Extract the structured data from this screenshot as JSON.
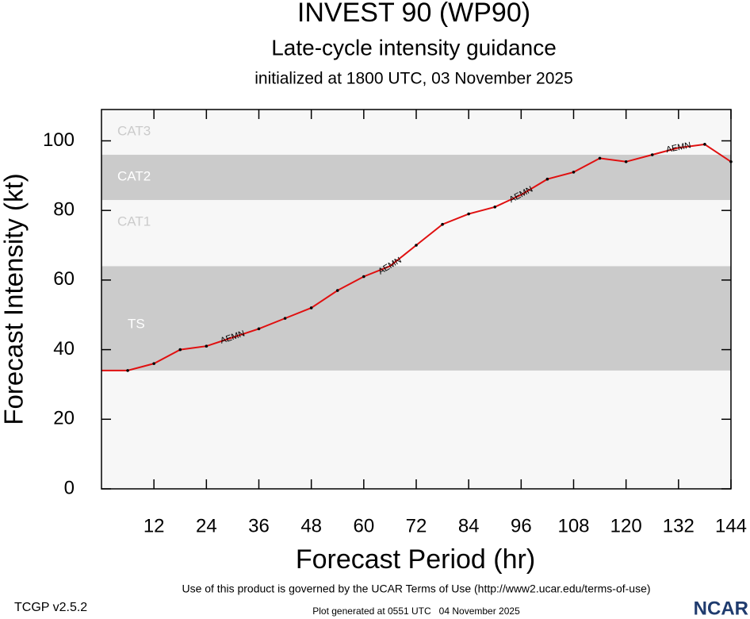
{
  "chart_data": {
    "type": "line",
    "title": "INVEST 90 (WP90)",
    "subtitle": "Late-cycle intensity guidance",
    "initialized": "initialized at 1800 UTC, 03 November 2025",
    "y_label": "Forecast Intensity (kt)",
    "x_label": "Forecast Period (hr)",
    "xlim": [
      0,
      144
    ],
    "ylim": [
      0,
      109
    ],
    "xticks": [
      12,
      24,
      36,
      48,
      60,
      72,
      84,
      96,
      108,
      120,
      132,
      144
    ],
    "yticks": [
      0,
      20,
      40,
      60,
      80,
      100
    ],
    "background": "#f7f7f7",
    "bands": [
      {
        "label": "TS",
        "from": 34,
        "to": 64,
        "color": "#cbcbcb",
        "label_color": "#ffffff"
      },
      {
        "label": "CAT1",
        "from": 64,
        "to": 83,
        "color": "#f7f7f7",
        "label_color": "#cbcbcb"
      },
      {
        "label": "CAT2",
        "from": 83,
        "to": 96,
        "color": "#cbcbcb",
        "label_color": "#ffffff"
      },
      {
        "label": "CAT3",
        "from": 96,
        "to": 113,
        "color": "#f7f7f7",
        "label_color": "#cbcbcb"
      }
    ],
    "x": [
      0,
      6,
      12,
      18,
      24,
      30,
      36,
      42,
      48,
      54,
      60,
      66,
      72,
      78,
      84,
      90,
      96,
      102,
      108,
      114,
      120,
      126,
      132,
      138,
      144
    ],
    "series": [
      {
        "name": "AEMN",
        "color": "#e01010",
        "values": [
          34,
          34,
          36,
          40,
          41,
          43.5,
          46,
          49,
          52,
          57,
          61,
          64,
          70,
          76,
          79,
          81,
          84.5,
          89,
          91,
          95,
          94,
          96,
          98,
          99,
          94
        ]
      }
    ]
  },
  "footer": {
    "version": "TCGP v2.5.2",
    "terms": "Use of this product is governed by the UCAR Terms of Use (http://www2.ucar.edu/terms-of-use)",
    "generated": "Plot generated at 0551 UTC   04 November 2025",
    "logo": "NCAR"
  }
}
